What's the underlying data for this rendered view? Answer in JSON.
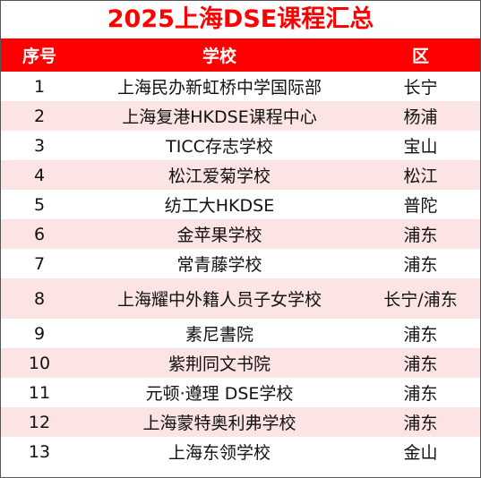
{
  "title": "2025上海DSE课程汇总",
  "headers": {
    "no": "序号",
    "school": "学校",
    "area": "区"
  },
  "rows": [
    {
      "no": "1",
      "school": "上海民办新虹桥中学国际部",
      "area": "长宁"
    },
    {
      "no": "2",
      "school": "上海复港HKDSE课程中心",
      "area": "杨浦"
    },
    {
      "no": "3",
      "school": "TICC存志学校",
      "area": "宝山"
    },
    {
      "no": "4",
      "school": "松江爱菊学校",
      "area": "松江"
    },
    {
      "no": "5",
      "school": "纺工大HKDSE",
      "area": "普陀"
    },
    {
      "no": "6",
      "school": "金苹果学校",
      "area": "浦东"
    },
    {
      "no": "7",
      "school": "常青藤学校",
      "area": "浦东"
    },
    {
      "no": "8",
      "school": "上海耀中外籍人员子女学校",
      "area": "长宁/浦东"
    },
    {
      "no": "9",
      "school": "素尼書院",
      "area": "浦东"
    },
    {
      "no": "10",
      "school": "紫荆同文书院",
      "area": "浦东"
    },
    {
      "no": "11",
      "school": "元顿·遵理 DSE学校",
      "area": "浦东"
    },
    {
      "no": "12",
      "school": "上海蒙特奥利弗学校",
      "area": "浦东"
    },
    {
      "no": "13",
      "school": "上海东领学校",
      "area": "金山"
    }
  ]
}
